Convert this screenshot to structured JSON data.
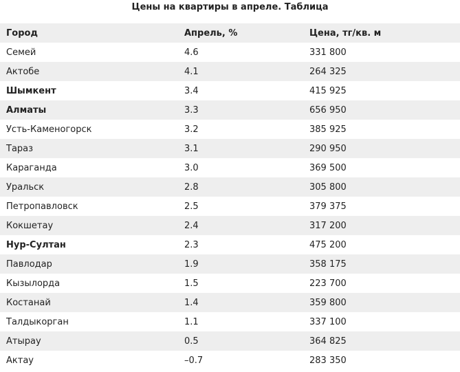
{
  "chart_data": {
    "type": "table",
    "title": "Цены на квартиры в апреле. Таблица",
    "columns": [
      "Город",
      "Апрель, %",
      "Цена, тг/кв. м"
    ],
    "rows": [
      {
        "city": "Семей",
        "april_pct": "4.6",
        "price": "331 800",
        "bold": false
      },
      {
        "city": "Актобе",
        "april_pct": "4.1",
        "price": "264 325",
        "bold": false
      },
      {
        "city": "Шымкент",
        "april_pct": "3.4",
        "price": "415 925",
        "bold": true
      },
      {
        "city": "Алматы",
        "april_pct": "3.3",
        "price": "656 950",
        "bold": true
      },
      {
        "city": "Усть-Каменогорск",
        "april_pct": "3.2",
        "price": "385 925",
        "bold": false
      },
      {
        "city": "Тараз",
        "april_pct": "3.1",
        "price": "290 950",
        "bold": false
      },
      {
        "city": "Караганда",
        "april_pct": "3.0",
        "price": "369 500",
        "bold": false
      },
      {
        "city": "Уральск",
        "april_pct": "2.8",
        "price": "305 800",
        "bold": false
      },
      {
        "city": "Петропавловск",
        "april_pct": "2.5",
        "price": "379 375",
        "bold": false
      },
      {
        "city": "Кокшетау",
        "april_pct": "2.4",
        "price": "317 200",
        "bold": false
      },
      {
        "city": "Нур-Султан",
        "april_pct": "2.3",
        "price": "475 200",
        "bold": true
      },
      {
        "city": "Павлодар",
        "april_pct": "1.9",
        "price": "358 175",
        "bold": false
      },
      {
        "city": "Кызылорда",
        "april_pct": "1.5",
        "price": "223 700",
        "bold": false
      },
      {
        "city": "Костанай",
        "april_pct": "1.4",
        "price": "359 800",
        "bold": false
      },
      {
        "city": "Талдыкорган",
        "april_pct": "1.1",
        "price": "337 100",
        "bold": false
      },
      {
        "city": "Атырау",
        "april_pct": "0.5",
        "price": "364 825",
        "bold": false
      },
      {
        "city": "Актау",
        "april_pct": "–0.7",
        "price": "283 350",
        "bold": false
      }
    ]
  },
  "colors": {
    "stripe": "#eeeeee",
    "background": "#ffffff",
    "text": "#222222"
  }
}
